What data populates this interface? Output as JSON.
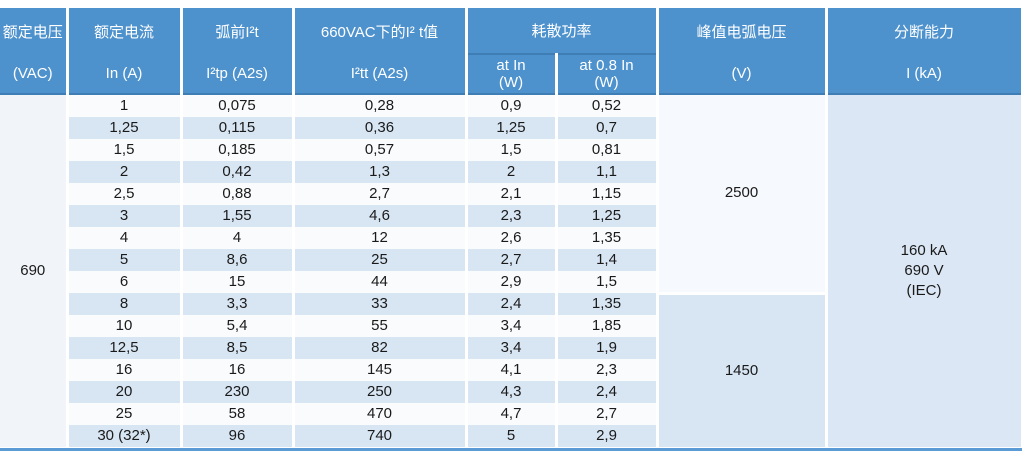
{
  "colors": {
    "header_blue": "#4e92cd",
    "stripe_blue": "#d8e6f4",
    "bottom_bar_blue": "#5b9bd5"
  },
  "header": {
    "rated_voltage": {
      "title": "额定电压",
      "unit": "(VAC)"
    },
    "rated_current": {
      "title": "额定电流",
      "unit": "In (A)"
    },
    "prearc_i2t": {
      "title": "弧前I²t",
      "unit": "I²tp (A2s)"
    },
    "i2t_660vac": {
      "title": "660VAC下的I² t值",
      "unit": "I²tt (A2s)"
    },
    "power_dissipation": {
      "title": "耗散功率",
      "sub_at_in": {
        "line1": "at  In",
        "line2": "(W)"
      },
      "sub_at_08in": {
        "line1": "at 0.8  In",
        "line2": "(W)"
      }
    },
    "peak_arc_voltage": {
      "title": "峰值电弧电压",
      "unit": "(V)"
    },
    "breaking_capacity": {
      "title": "分断能力",
      "unit": "I (kA)"
    }
  },
  "body": {
    "rated_voltage": "690",
    "peak_arc_voltage_group1": "2500",
    "peak_arc_voltage_group2": "1450",
    "breaking_capacity": {
      "line1": "160 kA",
      "line2": "690 V",
      "line3": "(IEC)"
    },
    "rows": [
      {
        "in": "1",
        "i2tp": "0,075",
        "i2tt": "0,28",
        "p_in": "0,9",
        "p_08in": "0,52"
      },
      {
        "in": "1,25",
        "i2tp": "0,115",
        "i2tt": "0,36",
        "p_in": "1,25",
        "p_08in": "0,7"
      },
      {
        "in": "1,5",
        "i2tp": "0,185",
        "i2tt": "0,57",
        "p_in": "1,5",
        "p_08in": "0,81"
      },
      {
        "in": "2",
        "i2tp": "0,42",
        "i2tt": "1,3",
        "p_in": "2",
        "p_08in": "1,1"
      },
      {
        "in": "2,5",
        "i2tp": "0,88",
        "i2tt": "2,7",
        "p_in": "2,1",
        "p_08in": "1,15"
      },
      {
        "in": "3",
        "i2tp": "1,55",
        "i2tt": "4,6",
        "p_in": "2,3",
        "p_08in": "1,25"
      },
      {
        "in": "4",
        "i2tp": "4",
        "i2tt": "12",
        "p_in": "2,6",
        "p_08in": "1,35"
      },
      {
        "in": "5",
        "i2tp": "8,6",
        "i2tt": "25",
        "p_in": "2,7",
        "p_08in": "1,4"
      },
      {
        "in": "6",
        "i2tp": "15",
        "i2tt": "44",
        "p_in": "2,9",
        "p_08in": "1,5"
      },
      {
        "in": "8",
        "i2tp": "3,3",
        "i2tt": "33",
        "p_in": "2,4",
        "p_08in": "1,35"
      },
      {
        "in": "10",
        "i2tp": "5,4",
        "i2tt": "55",
        "p_in": "3,4",
        "p_08in": "1,85"
      },
      {
        "in": "12,5",
        "i2tp": "8,5",
        "i2tt": "82",
        "p_in": "3,4",
        "p_08in": "1,9"
      },
      {
        "in": "16",
        "i2tp": "16",
        "i2tt": "145",
        "p_in": "4,1",
        "p_08in": "2,3"
      },
      {
        "in": "20",
        "i2tp": "230",
        "i2tt": "250",
        "p_in": "4,3",
        "p_08in": "2,4"
      },
      {
        "in": "25",
        "i2tp": "58",
        "i2tt": "470",
        "p_in": "4,7",
        "p_08in": "2,7"
      },
      {
        "in": "30 (32*)",
        "i2tp": "96",
        "i2tt": "740",
        "p_in": "5",
        "p_08in": "2,9"
      }
    ]
  }
}
